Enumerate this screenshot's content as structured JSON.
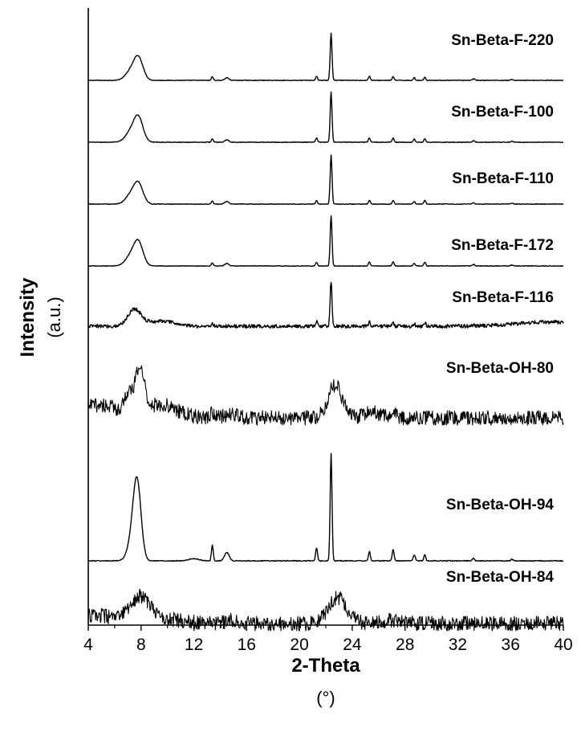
{
  "chart_data": {
    "type": "line",
    "xlabel": "2-Theta",
    "xunit": "(°)",
    "ylabel": "Intensity",
    "yunit": "(a.u.)",
    "xlim": [
      4,
      40
    ],
    "x_ticks": [
      "4",
      "8",
      "12",
      "16",
      "20",
      "24",
      "28",
      "32",
      "36",
      "40"
    ],
    "grid": false,
    "legend": "labels-right-of-each-trace",
    "line_color": "#000000",
    "series": [
      {
        "name": "Sn-Beta-F-220",
        "noise": 0.06,
        "peaks": [
          [
            7.2,
            1.6,
            0.4
          ],
          [
            7.8,
            4.2,
            0.35
          ],
          [
            13.4,
            0.7,
            0.07
          ],
          [
            14.5,
            0.5,
            0.15
          ],
          [
            21.3,
            0.8,
            0.07
          ],
          [
            22.4,
            9.0,
            0.07
          ],
          [
            25.3,
            0.8,
            0.07
          ],
          [
            27.1,
            0.7,
            0.07
          ],
          [
            28.7,
            0.5,
            0.07
          ],
          [
            29.5,
            0.6,
            0.07
          ],
          [
            33.2,
            0.3,
            0.08
          ],
          [
            36.1,
            0.2,
            0.08
          ]
        ]
      },
      {
        "name": "Sn-Beta-F-100",
        "noise": 0.06,
        "peaks": [
          [
            7.2,
            1.8,
            0.4
          ],
          [
            7.8,
            4.6,
            0.35
          ],
          [
            13.4,
            0.7,
            0.07
          ],
          [
            14.5,
            0.5,
            0.15
          ],
          [
            21.3,
            0.8,
            0.07
          ],
          [
            22.4,
            9.6,
            0.07
          ],
          [
            25.3,
            0.8,
            0.07
          ],
          [
            27.1,
            0.8,
            0.07
          ],
          [
            28.7,
            0.6,
            0.07
          ],
          [
            29.5,
            0.7,
            0.07
          ],
          [
            33.2,
            0.3,
            0.08
          ],
          [
            36.1,
            0.2,
            0.08
          ]
        ]
      },
      {
        "name": "Sn-Beta-F-110",
        "noise": 0.06,
        "peaks": [
          [
            7.2,
            1.6,
            0.4
          ],
          [
            7.8,
            3.8,
            0.35
          ],
          [
            13.4,
            0.6,
            0.07
          ],
          [
            14.5,
            0.5,
            0.15
          ],
          [
            21.3,
            0.7,
            0.07
          ],
          [
            22.4,
            9.4,
            0.07
          ],
          [
            25.3,
            0.7,
            0.07
          ],
          [
            27.1,
            0.7,
            0.07
          ],
          [
            28.7,
            0.5,
            0.07
          ],
          [
            29.5,
            0.7,
            0.07
          ],
          [
            33.2,
            0.3,
            0.08
          ],
          [
            36.1,
            0.2,
            0.08
          ]
        ]
      },
      {
        "name": "Sn-Beta-F-172",
        "noise": 0.06,
        "peaks": [
          [
            7.2,
            1.8,
            0.4
          ],
          [
            7.8,
            4.4,
            0.35
          ],
          [
            13.4,
            0.6,
            0.07
          ],
          [
            14.5,
            0.5,
            0.15
          ],
          [
            21.3,
            0.7,
            0.07
          ],
          [
            22.4,
            9.6,
            0.07
          ],
          [
            25.3,
            0.8,
            0.07
          ],
          [
            27.1,
            0.8,
            0.07
          ],
          [
            28.7,
            0.5,
            0.07
          ],
          [
            29.5,
            0.7,
            0.07
          ],
          [
            33.2,
            0.3,
            0.08
          ],
          [
            36.1,
            0.2,
            0.08
          ]
        ]
      },
      {
        "name": "Sn-Beta-F-116",
        "noise": 0.35,
        "peaks": [
          [
            7.5,
            3.2,
            0.5
          ],
          [
            9.5,
            1.0,
            1.0
          ],
          [
            13.4,
            0.6,
            0.07
          ],
          [
            21.3,
            0.8,
            0.07
          ],
          [
            22.4,
            8.6,
            0.07
          ],
          [
            25.3,
            0.8,
            0.07
          ],
          [
            27.1,
            0.8,
            0.07
          ],
          [
            28.7,
            0.6,
            0.07
          ],
          [
            29.5,
            0.7,
            0.07
          ],
          [
            33.2,
            0.3,
            0.08
          ],
          [
            39.0,
            0.8,
            2.5
          ]
        ]
      },
      {
        "name": "Sn-Beta-OH-80",
        "noise": 1.4,
        "peaks": [
          [
            4.8,
            2.5,
            1.5
          ],
          [
            7.0,
            3.5,
            0.3
          ],
          [
            7.9,
            8.5,
            0.35
          ],
          [
            9.5,
            2.5,
            1.2
          ],
          [
            13.4,
            1.5,
            0.1
          ],
          [
            14.8,
            0.8,
            0.4
          ],
          [
            22.7,
            6.2,
            0.55
          ],
          [
            25.5,
            1.0,
            0.6
          ],
          [
            27.1,
            0.8,
            0.2
          ]
        ]
      },
      {
        "name": "Sn-Beta-OH-94",
        "noise": 0.08,
        "peaks": [
          [
            7.3,
            3.0,
            0.35
          ],
          [
            7.7,
            14.5,
            0.3
          ],
          [
            12.0,
            0.4,
            0.4
          ],
          [
            13.4,
            3.0,
            0.07
          ],
          [
            14.5,
            1.6,
            0.18
          ],
          [
            21.3,
            2.5,
            0.07
          ],
          [
            22.4,
            20.5,
            0.07
          ],
          [
            25.3,
            1.8,
            0.07
          ],
          [
            27.1,
            2.2,
            0.07
          ],
          [
            28.7,
            1.1,
            0.08
          ],
          [
            29.5,
            1.2,
            0.07
          ],
          [
            33.2,
            0.5,
            0.08
          ],
          [
            36.1,
            0.3,
            0.08
          ]
        ]
      },
      {
        "name": "Sn-Beta-OH-84",
        "noise": 1.4,
        "peaks": [
          [
            4.6,
            1.6,
            1.2
          ],
          [
            7.9,
            5.0,
            0.8
          ],
          [
            10.0,
            0.8,
            1.2
          ],
          [
            15.0,
            0.8,
            0.5
          ],
          [
            22.9,
            5.0,
            0.7
          ],
          [
            27.0,
            0.6,
            0.8
          ]
        ]
      }
    ]
  }
}
